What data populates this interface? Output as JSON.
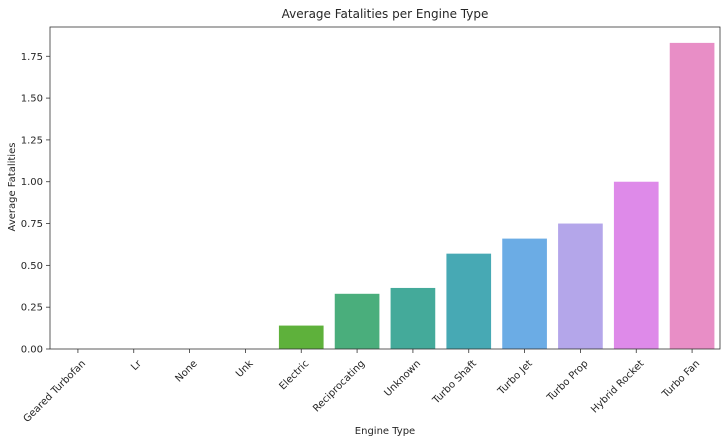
{
  "chart_data": {
    "type": "bar",
    "title": "Average Fatalities per Engine Type",
    "xlabel": "Engine Type",
    "ylabel": "Average Fatalities",
    "categories": [
      "Geared Turbofan",
      "Lr",
      "None",
      "Unk",
      "Electric",
      "Reciprocating",
      "Unknown",
      "Turbo Shaft",
      "Turbo Jet",
      "Turbo Prop",
      "Hybrid Rocket",
      "Turbo Fan"
    ],
    "values": [
      0,
      0,
      0,
      0,
      0.14,
      0.33,
      0.365,
      0.57,
      0.66,
      0.75,
      1.0,
      1.83
    ],
    "colors": [
      "#f77189",
      "#e7793a",
      "#c08f32",
      "#a29a31",
      "#5eb13b",
      "#4aae7c",
      "#44aa9a",
      "#47a9b4",
      "#6bace5",
      "#b4a6ea",
      "#de8ae9",
      "#e88ec6"
    ],
    "ylim": [
      0,
      1.925
    ],
    "yticks": [
      "0.00",
      "0.25",
      "0.50",
      "0.75",
      "1.00",
      "1.25",
      "1.50",
      "1.75"
    ],
    "grid": false,
    "legend": "none"
  }
}
